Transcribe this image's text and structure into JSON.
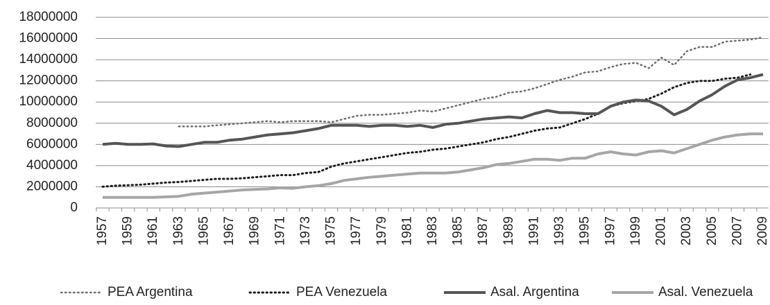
{
  "chart_data": {
    "type": "line",
    "categories": [
      "1957",
      null,
      "1959",
      null,
      "1961",
      null,
      "1963",
      null,
      "1965",
      null,
      "1967",
      null,
      "1969",
      null,
      "1971",
      null,
      "1973",
      null,
      "1975",
      null,
      "1977",
      null,
      "1979",
      null,
      "1981",
      null,
      "1983",
      null,
      "1985",
      null,
      "1987",
      null,
      "1989",
      null,
      "1991",
      null,
      "1993",
      null,
      "1995",
      null,
      "1997",
      null,
      "1999",
      null,
      "2001",
      null,
      "2003",
      null,
      "2005",
      null,
      "2007",
      null,
      "2009"
    ],
    "ylim": [
      0,
      18000000
    ],
    "yticks": [
      0,
      2000000,
      4000000,
      6000000,
      8000000,
      10000000,
      12000000,
      14000000,
      16000000,
      18000000
    ],
    "grid": true,
    "legend": "bottom",
    "series": [
      {
        "name": "PEA Argentina",
        "color": "#6e6e6e",
        "dash": "dotted",
        "values": [
          null,
          null,
          null,
          null,
          null,
          null,
          7700000,
          7700000,
          7700000,
          7800000,
          7900000,
          8000000,
          8100000,
          8200000,
          8100000,
          8200000,
          8200000,
          8200000,
          8100000,
          8400000,
          8700000,
          8800000,
          8800000,
          8900000,
          9000000,
          9200000,
          9100000,
          9400000,
          9700000,
          10000000,
          10300000,
          10500000,
          10900000,
          11000000,
          11300000,
          11700000,
          12100000,
          12400000,
          12800000,
          12900000,
          13300000,
          13600000,
          13700000,
          13200000,
          14200000,
          13500000,
          14800000,
          15200000,
          15200000,
          15700000,
          15800000,
          15900000,
          16100000
        ]
      },
      {
        "name": "PEA Venezuela",
        "color": "#1e1e1e",
        "dash": "dotted",
        "values": [
          2000000,
          2100000,
          2150000,
          2200000,
          2300000,
          2400000,
          2450000,
          2550000,
          2650000,
          2750000,
          2750000,
          2800000,
          2900000,
          3000000,
          3100000,
          3100000,
          3300000,
          3400000,
          3900000,
          4200000,
          4400000,
          4600000,
          4800000,
          5000000,
          5200000,
          5300000,
          5500000,
          5600000,
          5800000,
          6000000,
          6200000,
          6500000,
          6700000,
          7000000,
          7300000,
          7500000,
          7600000,
          8000000,
          8400000,
          8900000,
          9600000,
          9900000,
          10100000,
          10300000,
          10800000,
          11400000,
          11800000,
          12000000,
          12000000,
          12200000,
          12300000,
          12600000,
          null
        ]
      },
      {
        "name": "Asal. Argentina",
        "color": "#555555",
        "dash": "solid",
        "values": [
          6000000,
          6100000,
          6000000,
          6000000,
          6050000,
          5850000,
          5800000,
          6000000,
          6200000,
          6200000,
          6400000,
          6500000,
          6700000,
          6900000,
          7000000,
          7100000,
          7300000,
          7500000,
          7800000,
          7800000,
          7800000,
          7700000,
          7800000,
          7800000,
          7700000,
          7800000,
          7600000,
          7900000,
          8000000,
          8200000,
          8400000,
          8500000,
          8600000,
          8500000,
          8900000,
          9200000,
          9000000,
          9000000,
          8900000,
          8900000,
          9600000,
          10000000,
          10200000,
          10100000,
          9600000,
          8800000,
          9300000,
          10100000,
          10700000,
          11500000,
          12100000,
          12300000,
          12600000
        ]
      },
      {
        "name": "Asal. Venezuela",
        "color": "#a6a6a6",
        "dash": "solid",
        "values": [
          1000000,
          1000000,
          1000000,
          1000000,
          1000000,
          1050000,
          1100000,
          1300000,
          1400000,
          1500000,
          1600000,
          1700000,
          1750000,
          1800000,
          1900000,
          1850000,
          2000000,
          2100000,
          2300000,
          2600000,
          2750000,
          2900000,
          3000000,
          3100000,
          3200000,
          3300000,
          3300000,
          3300000,
          3400000,
          3600000,
          3800000,
          4100000,
          4200000,
          4400000,
          4600000,
          4600000,
          4500000,
          4700000,
          4700000,
          5100000,
          5300000,
          5100000,
          5000000,
          5300000,
          5400000,
          5200000,
          5600000,
          6000000,
          6400000,
          6700000,
          6900000,
          7000000,
          7000000
        ]
      }
    ]
  }
}
